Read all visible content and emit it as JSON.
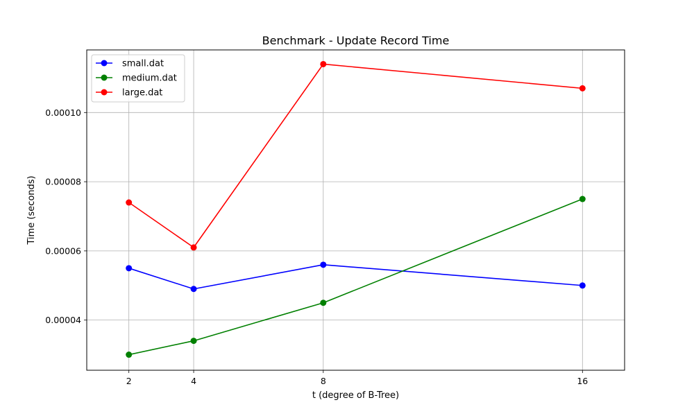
{
  "chart_data": {
    "type": "line",
    "title": "Benchmark - Update Record Time",
    "xlabel": "t (degree of B-Tree)",
    "ylabel": "Time (seconds)",
    "x": [
      2,
      4,
      8,
      16
    ],
    "x_ticks": [
      "2",
      "4",
      "8",
      "16"
    ],
    "y_ticks": [
      "0.00004",
      "0.00006",
      "0.00008",
      "0.00010"
    ],
    "y_tick_values": [
      4e-05,
      6e-05,
      8e-05,
      0.0001
    ],
    "xlim": [
      0.7,
      17.3
    ],
    "ylim": [
      2.55e-05,
      0.0001181
    ],
    "grid": true,
    "legend_position": "top-left",
    "series": [
      {
        "name": "small.dat",
        "color": "#0000ff",
        "marker": "circle",
        "values": [
          5.5e-05,
          4.9e-05,
          5.6e-05,
          5e-05
        ]
      },
      {
        "name": "medium.dat",
        "color": "#008000",
        "marker": "circle",
        "values": [
          3e-05,
          3.4e-05,
          4.5e-05,
          7.5e-05
        ]
      },
      {
        "name": "large.dat",
        "color": "#ff0000",
        "marker": "circle",
        "values": [
          7.4e-05,
          6.1e-05,
          0.000114,
          0.000107
        ]
      }
    ]
  }
}
